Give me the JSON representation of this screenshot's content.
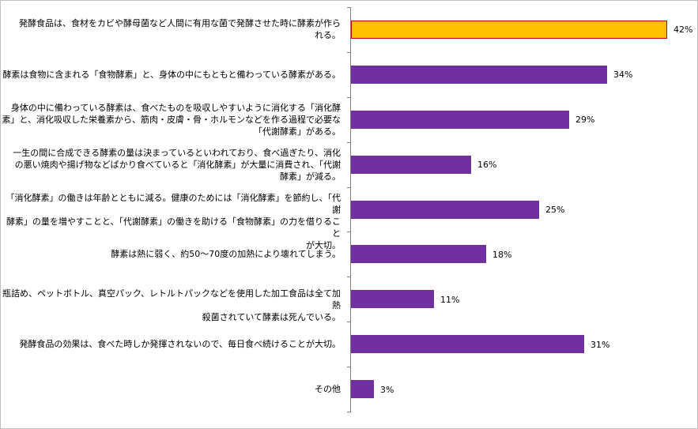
{
  "chart_data": {
    "type": "bar",
    "orientation": "horizontal",
    "categories": [
      "発酵食品は、食材をカビや酵母菌など人間に有用な菌で発酵させた時に酵素が作られる。",
      "酵素は食物に含まれる「食物酵素」と、身体の中にもともと備わっている酵素がある。",
      "身体の中に備わっている酵素は、食べたものを吸収しやすいように消化する「消化酵素」と、消化吸収した栄養素から、筋肉・皮膚・骨・ホルモンなどを作る過程で必要な「代謝酵素」がある。",
      "一生の間に合成できる酵素の量は決まっているといわれており、食べ過ぎたり、消化の悪い焼肉や揚げ物などばかり食べていると「消化酵素」が大量に消費され、「代謝酵素」が減る。",
      "「消化酵素」の働きは年齢とともに減る。健康のためには「消化酵素」を節約し、「代謝酵素」の量を増やすことと、「代謝酵素」の働きを助ける「食物酵素」の力を借りることが大切。",
      "酵素は熱に弱く、約50～70度の加熱により壊れてしまう。",
      "瓶詰め、ペットボトル、真空パック、レトルトパックなどを使用した加工食品は全て加熱殺菌されていて酵素は死んでいる。",
      "発酵食品の効果は、食べた時しか発揮されないので、毎日食べ続けることが大切。",
      "その他"
    ],
    "display_lines": [
      [
        "発酵食品は、食材をカビや酵母菌など人間に有用な菌で発酵させた時に酵素が作ら",
        "れる。"
      ],
      [
        "酵素は食物に含まれる「食物酵素」と、身体の中にもともと備わっている酵素がある。"
      ],
      [
        "身体の中に備わっている酵素は、食べたものを吸収しやすいように消化する「消化酵",
        "素」と、消化吸収した栄養素から、筋肉・皮膚・骨・ホルモンなどを作る過程で必要な",
        "「代謝酵素」がある。"
      ],
      [
        "一生の間に合成できる酵素の量は決まっているといわれており、食べ過ぎたり、消化",
        "の悪い焼肉や揚げ物などばかり食べていると「消化酵素」が大量に消費され、「代謝",
        "酵素」が減る。"
      ],
      [
        "「消化酵素」の働きは年齢とともに減る。健康のためには「消化酵素」を節約し、「代謝",
        "酵素」の量を増やすことと、「代謝酵素」の働きを助ける「食物酵素」の力を借りること",
        "が大切。"
      ],
      [
        "酵素は熱に弱く、約50～70度の加熱により壊れてしまう。"
      ],
      [
        "瓶詰め、ペットボトル、真空パック、レトルトパックなどを使用した加工食品は全て加熱",
        "殺菌されていて酵素は死んでいる。"
      ],
      [
        "発酵食品の効果は、食べた時しか発揮されないので、毎日食べ続けることが大切。"
      ],
      [
        "その他"
      ]
    ],
    "values": [
      42,
      34,
      29,
      16,
      25,
      18,
      11,
      31,
      3
    ],
    "value_labels": [
      "42%",
      "34%",
      "29%",
      "16%",
      "25%",
      "18%",
      "11%",
      "31%",
      "3%"
    ],
    "xlim": [
      0,
      42
    ],
    "grid": false,
    "legend": "none",
    "colors": {
      "highlight_fill": "#FFC000",
      "highlight_stroke": "#C00000",
      "bar_fill": "#7030A0",
      "axis": "#808080"
    },
    "highlight_index": 0
  }
}
